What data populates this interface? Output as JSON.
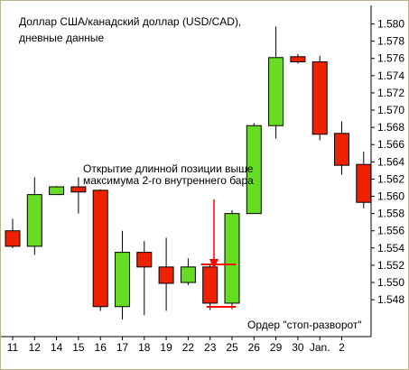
{
  "colors": {
    "up": "#66dd22",
    "down": "#ee2200",
    "wick": "#000000",
    "stop_line": "#ff0000",
    "arrow": "#ff0000",
    "background": "#ffffff",
    "frame": "#b9b48c"
  },
  "chart_data": {
    "type": "candlestick",
    "title_lines": [
      "Доллар США/канадский доллар (USD/CAD),",
      "дневные данные"
    ],
    "xlabel": "",
    "ylabel": "",
    "ylim": [
      1.5455,
      1.581
    ],
    "grid": false,
    "yticks": [
      1.548,
      1.55,
      1.552,
      1.554,
      1.556,
      1.558,
      1.56,
      1.562,
      1.564,
      1.566,
      1.568,
      1.57,
      1.572,
      1.574,
      1.576,
      1.578,
      1.58
    ],
    "ytick_labels": [
      "1.548",
      "1.550",
      "1.552",
      "1.554",
      "1.556",
      "1.558",
      "1.560",
      "1.562",
      "1.564",
      "1.566",
      "1.568",
      "1.570",
      "1.572",
      "1.574",
      "1.576",
      "1.578",
      "1.580"
    ],
    "xtick_labels": [
      "11",
      "12",
      "14",
      "15",
      "16",
      "17",
      "18",
      "19",
      "22",
      "23",
      "25",
      "26",
      "29",
      "30",
      "Jan.",
      "2"
    ],
    "candles": [
      {
        "open": 1.556,
        "high": 1.5574,
        "low": 1.554,
        "close": 1.5542
      },
      {
        "open": 1.5542,
        "high": 1.5622,
        "low": 1.5532,
        "close": 1.5602
      },
      {
        "open": 1.5602,
        "high": 1.5612,
        "low": 1.5602,
        "close": 1.5611
      },
      {
        "open": 1.5611,
        "high": 1.5622,
        "low": 1.558,
        "close": 1.5605
      },
      {
        "open": 1.5607,
        "high": 1.5608,
        "low": 1.5467,
        "close": 1.5472
      },
      {
        "open": 1.5472,
        "high": 1.556,
        "low": 1.5457,
        "close": 1.5535
      },
      {
        "open": 1.5535,
        "high": 1.5548,
        "low": 1.5462,
        "close": 1.5518
      },
      {
        "open": 1.5518,
        "high": 1.5552,
        "low": 1.5467,
        "close": 1.5499
      },
      {
        "open": 1.55,
        "high": 1.5528,
        "low": 1.5497,
        "close": 1.5518
      },
      {
        "open": 1.5518,
        "high": 1.552,
        "low": 1.5468,
        "close": 1.5476
      },
      {
        "open": 1.5476,
        "high": 1.5584,
        "low": 1.5469,
        "close": 1.558
      },
      {
        "open": 1.558,
        "high": 1.5685,
        "low": 1.558,
        "close": 1.5682
      },
      {
        "open": 1.5682,
        "high": 1.5797,
        "low": 1.5667,
        "close": 1.5761
      },
      {
        "open": 1.5762,
        "high": 1.5765,
        "low": 1.5754,
        "close": 1.5756
      },
      {
        "open": 1.5756,
        "high": 1.5763,
        "low": 1.5665,
        "close": 1.5672
      },
      {
        "open": 1.5673,
        "high": 1.5687,
        "low": 1.5625,
        "close": 1.5636
      },
      {
        "open": 1.5637,
        "high": 1.5652,
        "low": 1.5586,
        "close": 1.5593
      }
    ],
    "annotations": [
      {
        "text_lines": [
          "Открытие длинной позиции выше",
          "максимума 2-го внутреннего бара"
        ]
      },
      {
        "text_lines": [
          "Ордер \"стоп-разворот\""
        ]
      }
    ],
    "stop_line_price": 1.5476,
    "entry_line_price": 1.5521
  }
}
